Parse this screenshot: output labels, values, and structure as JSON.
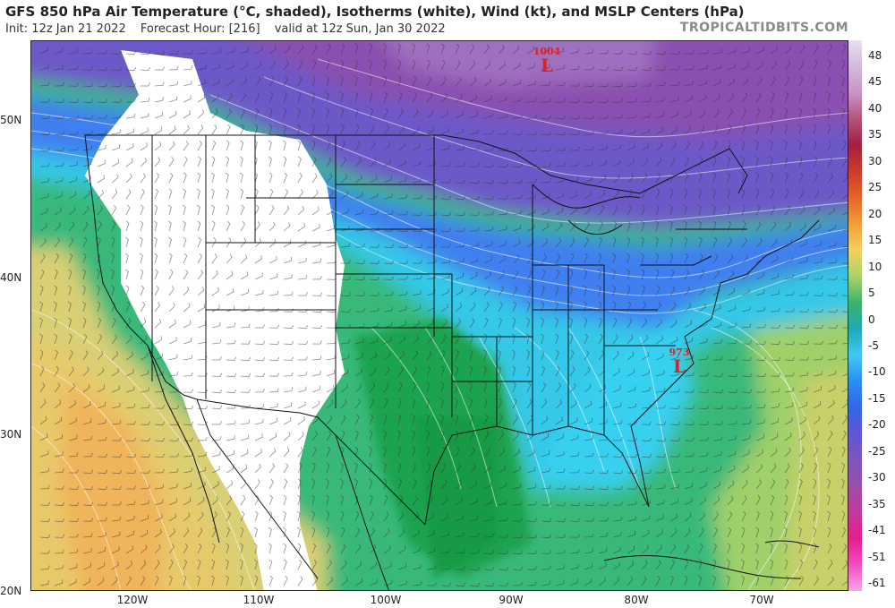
{
  "header": {
    "title": "GFS 850 hPa Air Temperature (°C, shaded), Isotherms (white), Wind (kt), and MSLP Centers (hPa)",
    "init": "Init: 12z Jan 21 2022",
    "forecast_hour": "Forecast Hour: [216]",
    "valid": "valid at 12z Sun, Jan 30 2022",
    "brand": "TROPICALTIDBITS.COM"
  },
  "axes": {
    "lat_labels": [
      "50N",
      "40N",
      "30N",
      "20N"
    ],
    "lon_labels": [
      "120W",
      "110W",
      "100W",
      "90W",
      "80W",
      "70W"
    ]
  },
  "colorbar": {
    "labels": [
      "48",
      "45",
      "40",
      "35",
      "30",
      "25",
      "20",
      "15",
      "10",
      "5",
      "0",
      "-5",
      "-10",
      "-15",
      "-20",
      "-25",
      "-30",
      "-35",
      "-41",
      "-51",
      "-61"
    ],
    "colors": [
      "#e7e1ef",
      "#d4b9da",
      "#c994c7",
      "#b2537a",
      "#a02040",
      "#cc3b2a",
      "#e6642b",
      "#f0a038",
      "#f2d15e",
      "#a8d36a",
      "#3fb16b",
      "#1ea9b8",
      "#43c8f2",
      "#2a8ff0",
      "#3366e6",
      "#5f56d6",
      "#7e56b8",
      "#9a4fab",
      "#c03a9d",
      "#e61d8c",
      "#f04fc0",
      "#f5a7e8"
    ]
  },
  "pressure_centers": [
    {
      "value": "1004",
      "label": "L"
    },
    {
      "value": "973",
      "label": "L"
    }
  ]
}
